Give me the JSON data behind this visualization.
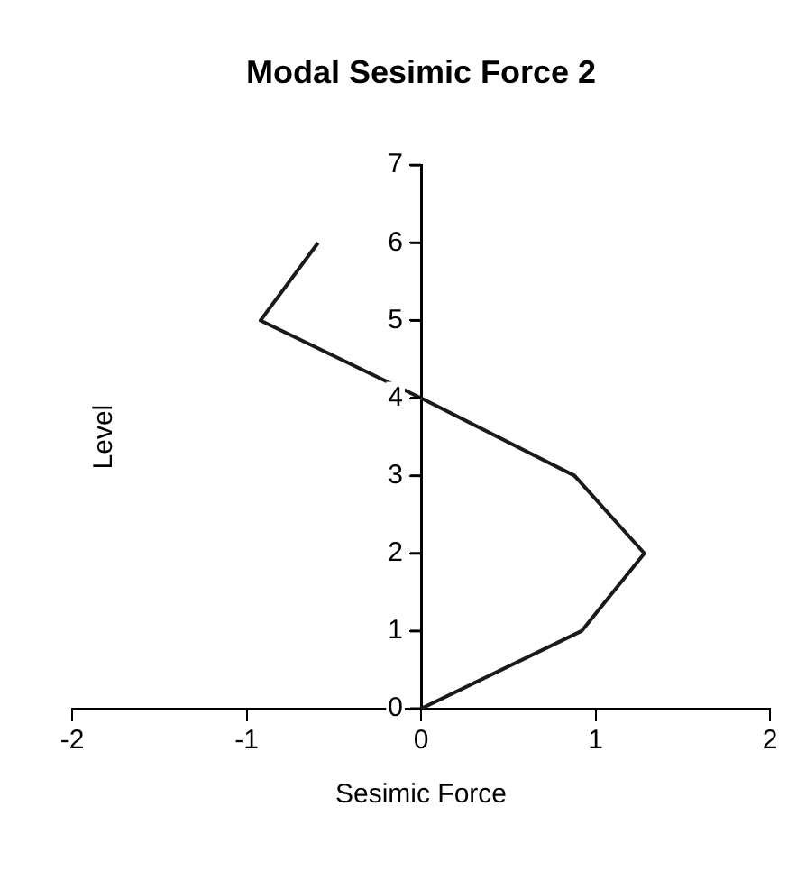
{
  "chart_data": {
    "type": "line",
    "title": "Modal Sesimic Force 2",
    "xlabel": "Sesimic Force",
    "ylabel": "Level",
    "series": [
      {
        "color": "#1a1a1a",
        "x": [
          0,
          0.92,
          1.28,
          0.88,
          0,
          -0.92,
          -0.59
        ],
        "values": [
          0,
          1,
          2,
          3,
          4,
          5,
          6
        ]
      }
    ],
    "xlim": [
      -2,
      2
    ],
    "xticks": [
      -2,
      -1,
      0,
      1,
      2
    ],
    "ylim": [
      0,
      7
    ],
    "yticks": [
      0,
      1,
      2,
      3,
      4,
      5,
      6,
      7
    ],
    "grid": false,
    "legend": false,
    "marker": "none",
    "line_style": "solid"
  }
}
